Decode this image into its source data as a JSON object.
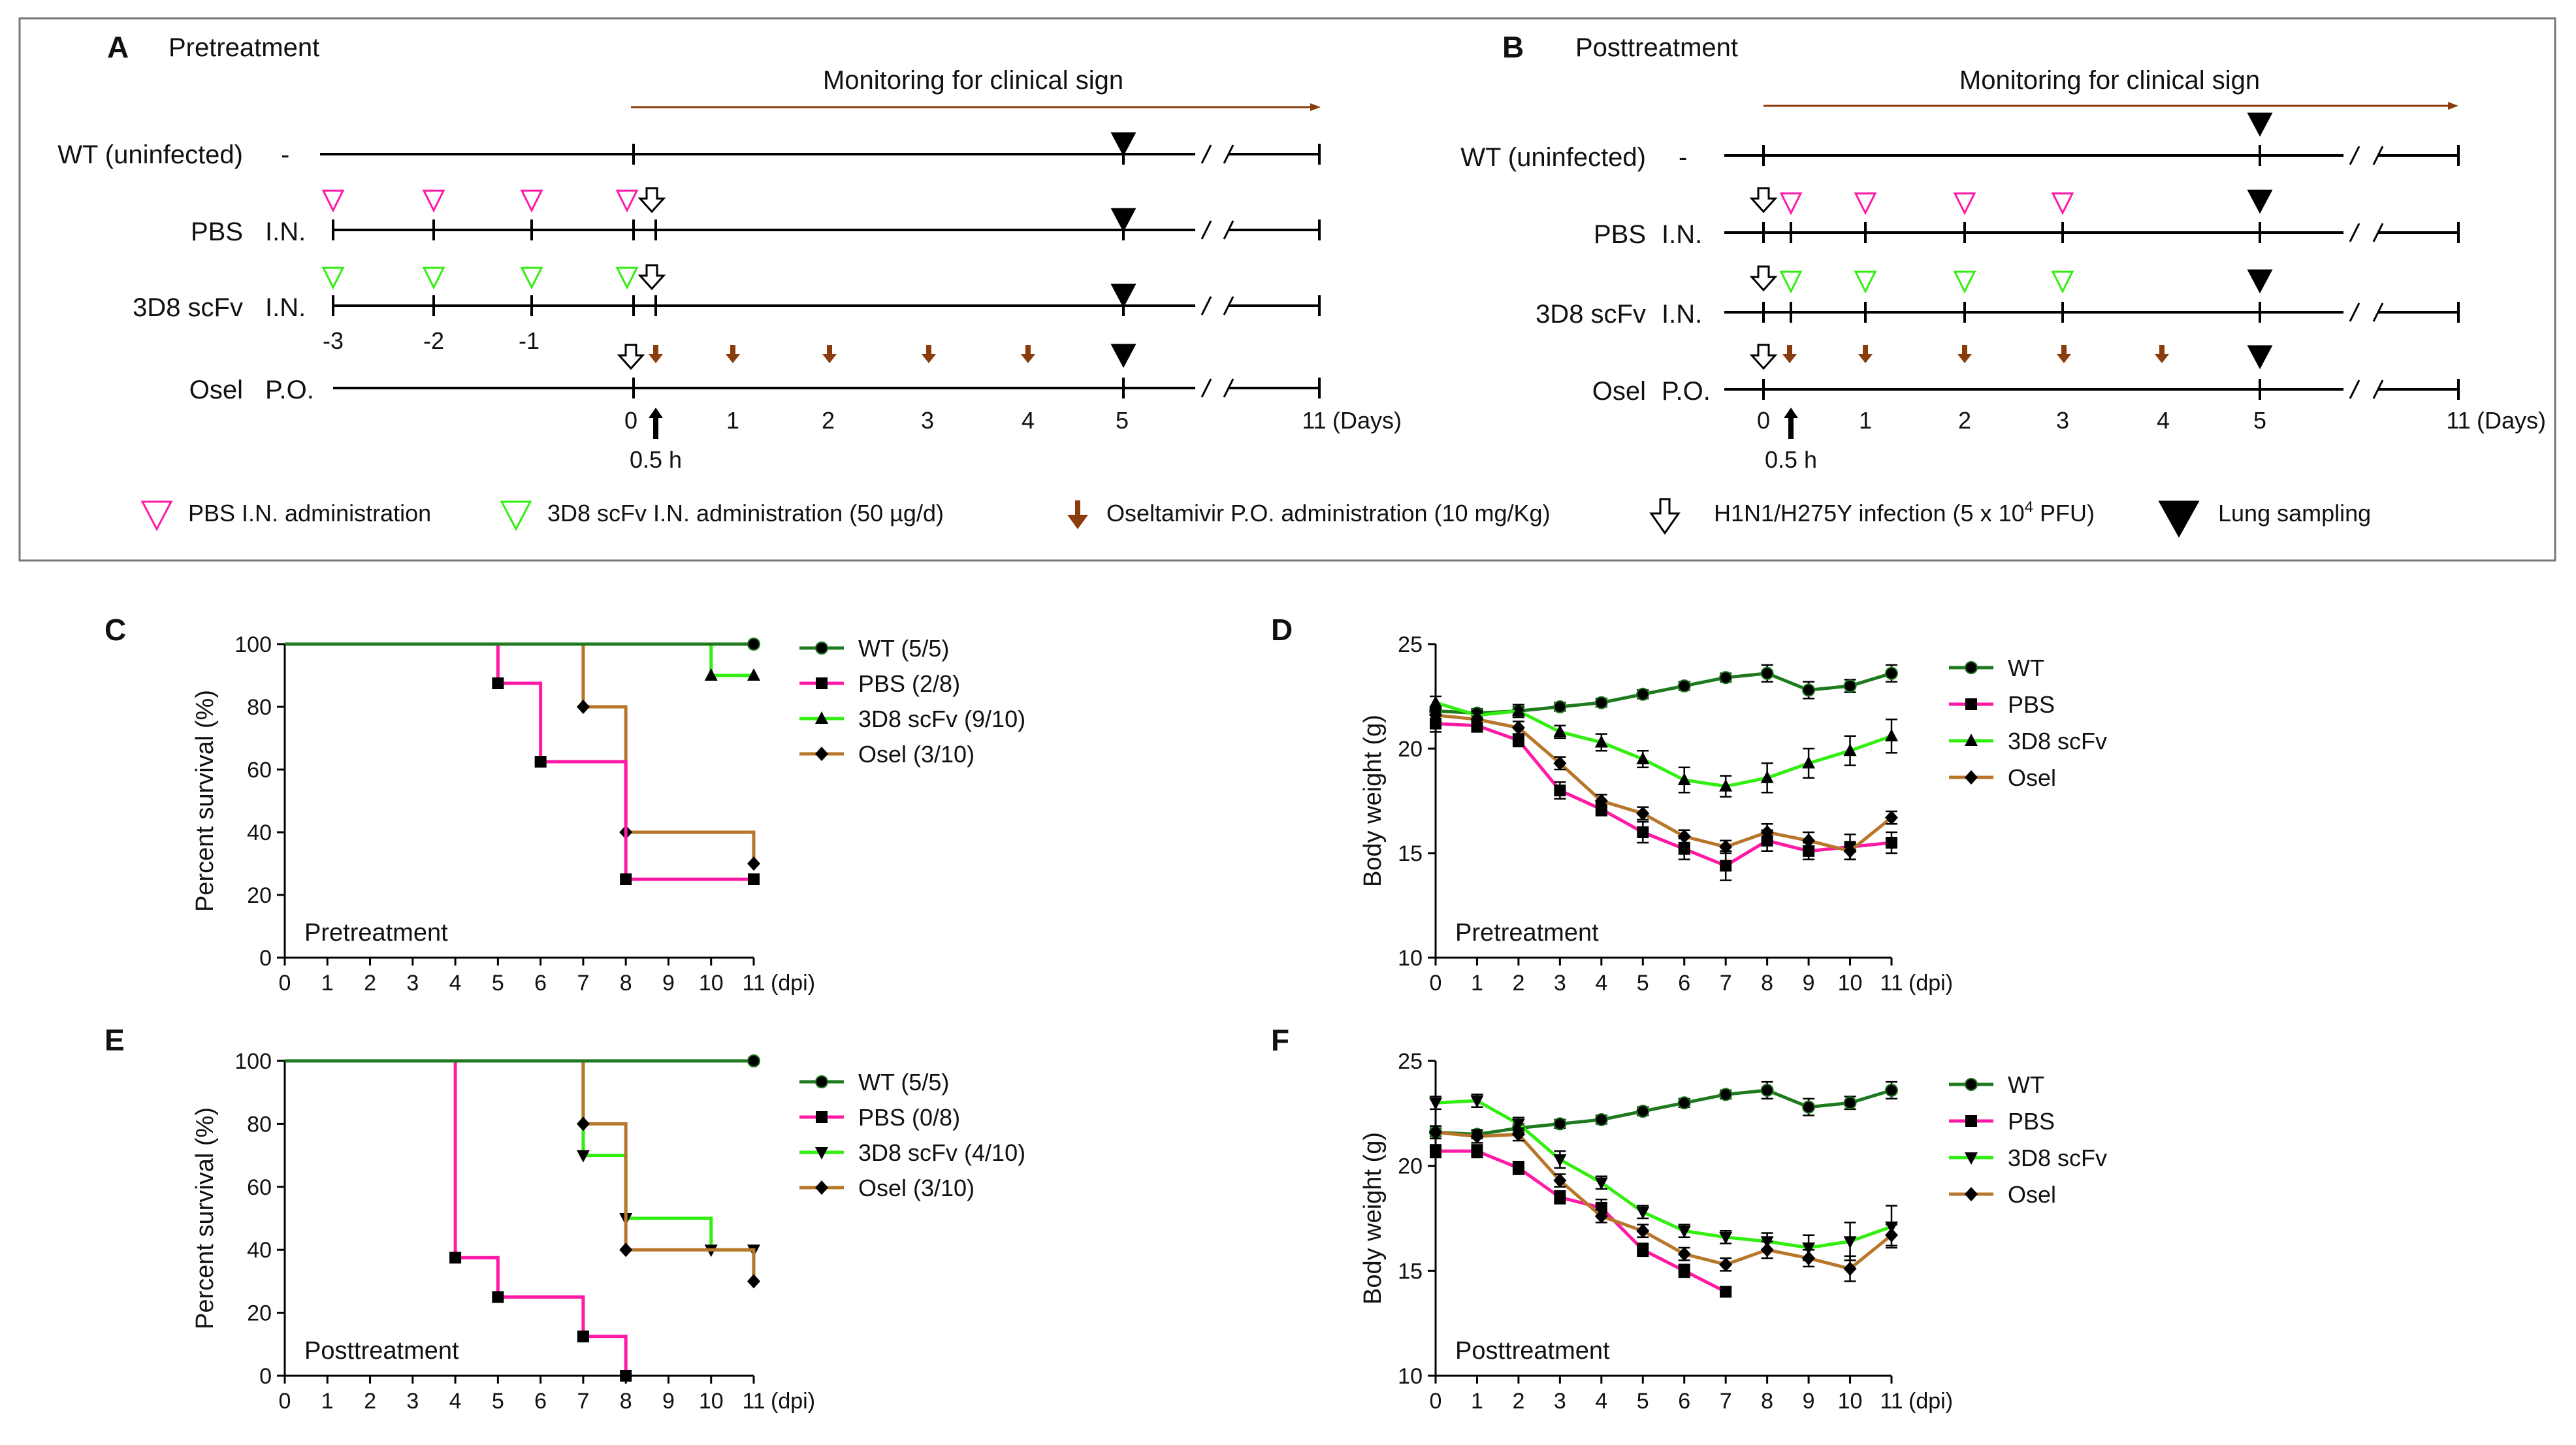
{
  "colors": {
    "wt": "#1f7a1f",
    "pbs": "#ff1aa5",
    "scfv": "#33ee11",
    "osel": "#b8762a",
    "arrow": "#8b3c0c",
    "black": "#000000"
  },
  "schematic": {
    "panels": [
      {
        "letter": "A",
        "title": "Pretreatment",
        "monitoring": "Monitoring for clinical sign",
        "rows": [
          {
            "label": "WT (uninfected)",
            "route": "-"
          },
          {
            "label": "PBS",
            "route": "I.N."
          },
          {
            "label": "3D8 scFv",
            "route": "I.N."
          },
          {
            "label": "Osel",
            "route": "P.O."
          }
        ],
        "day_labels": [
          "-3",
          "-2",
          "-1",
          "0",
          "1",
          "2",
          "3",
          "4",
          "5",
          "11"
        ],
        "half_hour": "0.5 h",
        "days_unit": "(Days)"
      },
      {
        "letter": "B",
        "title": "Posttreatment",
        "monitoring": "Monitoring for clinical sign",
        "rows": [
          {
            "label": "WT (uninfected)",
            "route": "-"
          },
          {
            "label": "PBS",
            "route": "I.N."
          },
          {
            "label": "3D8 scFv",
            "route": "I.N."
          },
          {
            "label": "Osel",
            "route": "P.O."
          }
        ],
        "day_labels": [
          "0",
          "1",
          "2",
          "3",
          "4",
          "5",
          "11"
        ],
        "half_hour": "0.5 h",
        "days_unit": "(Days)"
      }
    ],
    "legend": [
      {
        "icon": "pink-triangle-icon",
        "label": "PBS I.N. administration"
      },
      {
        "icon": "green-triangle-icon",
        "label": "3D8 scFv I.N. administration (50 µg/d)"
      },
      {
        "icon": "brown-arrow-icon",
        "label": "Oseltamivir P.O. administration (10 mg/Kg)"
      },
      {
        "icon": "open-arrow-icon",
        "label": "H1N1/H275Y infection (5 x 10",
        "label_sup": "4",
        "label_tail": " PFU)"
      },
      {
        "icon": "black-triangle-icon",
        "label": "Lung sampling"
      }
    ]
  },
  "chart_data": [
    {
      "id": "C",
      "type": "line",
      "step": true,
      "title": "Pretreatment",
      "xlabel": "(dpi)",
      "ylabel": "Percent survival  (%)",
      "xlim": [
        0,
        11
      ],
      "ylim": [
        0,
        100
      ],
      "xticks": [
        0,
        1,
        2,
        3,
        4,
        5,
        6,
        7,
        8,
        9,
        10,
        11
      ],
      "yticks": [
        0,
        20,
        40,
        60,
        80,
        100
      ],
      "series": [
        {
          "name": "WT",
          "count": "(5/5)",
          "key": "wt",
          "marker": "circle",
          "x": [
            0,
            11
          ],
          "y": [
            100,
            100
          ]
        },
        {
          "name": "PBS",
          "count": "(2/8)",
          "key": "pbs",
          "marker": "square",
          "x": [
            0,
            5,
            6,
            8,
            11
          ],
          "y": [
            100,
            87.5,
            62.5,
            25,
            25
          ]
        },
        {
          "name": "3D8 scFv",
          "count": "(9/10)",
          "key": "scfv",
          "marker": "triangle-up",
          "x": [
            0,
            10,
            11
          ],
          "y": [
            100,
            90,
            90
          ]
        },
        {
          "name": "Osel",
          "count": "(3/10)",
          "key": "osel",
          "marker": "diamond",
          "x": [
            0,
            7,
            8,
            11
          ],
          "y": [
            100,
            80,
            40,
            30
          ]
        }
      ]
    },
    {
      "id": "D",
      "type": "line",
      "title": "Pretreatment",
      "xlabel": "(dpi)",
      "ylabel": "Body weight  (g)",
      "xlim": [
        0,
        11
      ],
      "ylim": [
        10,
        25
      ],
      "xticks": [
        0,
        1,
        2,
        3,
        4,
        5,
        6,
        7,
        8,
        9,
        10,
        11
      ],
      "yticks": [
        10,
        15,
        20,
        25
      ],
      "series": [
        {
          "name": "WT",
          "key": "wt",
          "marker": "circle",
          "x": [
            0,
            1,
            2,
            3,
            4,
            5,
            6,
            7,
            8,
            9,
            10,
            11
          ],
          "y": [
            21.8,
            21.7,
            21.8,
            22.0,
            22.2,
            22.6,
            23.0,
            23.4,
            23.6,
            22.8,
            23.0,
            23.6
          ],
          "err": [
            0.2,
            0.2,
            0.2,
            0.2,
            0.2,
            0.2,
            0.2,
            0.2,
            0.4,
            0.4,
            0.3,
            0.4
          ]
        },
        {
          "name": "PBS",
          "key": "pbs",
          "marker": "square",
          "x": [
            0,
            1,
            2,
            3,
            4,
            5,
            6,
            7,
            8,
            9,
            10,
            11
          ],
          "y": [
            21.2,
            21.1,
            20.4,
            18.0,
            17.1,
            16.0,
            15.2,
            14.4,
            15.6,
            15.1,
            15.3,
            15.5
          ],
          "err": [
            0.4,
            0.3,
            0.3,
            0.4,
            0.3,
            0.5,
            0.5,
            0.7,
            0.5,
            0.4,
            0.6,
            0.5
          ]
        },
        {
          "name": "3D8 scFv",
          "key": "scfv",
          "marker": "triangle-up",
          "x": [
            0,
            1,
            2,
            3,
            4,
            5,
            6,
            7,
            8,
            9,
            10,
            11
          ],
          "y": [
            22.2,
            21.6,
            21.8,
            20.8,
            20.3,
            19.5,
            18.5,
            18.2,
            18.6,
            19.3,
            19.9,
            20.6
          ],
          "err": [
            0.3,
            0.2,
            0.3,
            0.3,
            0.4,
            0.4,
            0.6,
            0.5,
            0.7,
            0.7,
            0.7,
            0.8
          ]
        },
        {
          "name": "Osel",
          "key": "osel",
          "marker": "diamond",
          "x": [
            0,
            1,
            2,
            3,
            4,
            5,
            6,
            7,
            8,
            9,
            10,
            11
          ],
          "y": [
            21.6,
            21.4,
            21.0,
            19.3,
            17.5,
            16.9,
            15.8,
            15.3,
            16.0,
            15.6,
            15.1,
            16.7
          ],
          "err": [
            0.3,
            0.3,
            0.3,
            0.3,
            0.3,
            0.3,
            0.3,
            0.3,
            0.4,
            0.4,
            0.4,
            0.3
          ]
        }
      ]
    },
    {
      "id": "E",
      "type": "line",
      "step": true,
      "title": "Posttreatment",
      "xlabel": "(dpi)",
      "ylabel": "Percent survival  (%)",
      "xlim": [
        0,
        11
      ],
      "ylim": [
        0,
        100
      ],
      "xticks": [
        0,
        1,
        2,
        3,
        4,
        5,
        6,
        7,
        8,
        9,
        10,
        11
      ],
      "yticks": [
        0,
        20,
        40,
        60,
        80,
        100
      ],
      "series": [
        {
          "name": "WT",
          "count": "(5/5)",
          "key": "wt",
          "marker": "circle",
          "x": [
            0,
            11
          ],
          "y": [
            100,
            100
          ]
        },
        {
          "name": "PBS",
          "count": "(0/8)",
          "key": "pbs",
          "marker": "square",
          "x": [
            0,
            4,
            5,
            7,
            8
          ],
          "y": [
            100,
            37.5,
            25,
            12.5,
            0
          ]
        },
        {
          "name": "3D8 scFv",
          "count": "(4/10)",
          "key": "scfv",
          "marker": "triangle-down",
          "x": [
            0,
            7,
            8,
            10,
            11
          ],
          "y": [
            100,
            70,
            50,
            40,
            40
          ]
        },
        {
          "name": "Osel",
          "count": "(3/10)",
          "key": "osel",
          "marker": "diamond",
          "x": [
            0,
            7,
            8,
            11
          ],
          "y": [
            100,
            80,
            40,
            30
          ]
        }
      ]
    },
    {
      "id": "F",
      "type": "line",
      "title": "Posttreatment",
      "xlabel": "(dpi)",
      "ylabel": "Body weight  (g)",
      "xlim": [
        0,
        11
      ],
      "ylim": [
        10,
        25
      ],
      "xticks": [
        0,
        1,
        2,
        3,
        4,
        5,
        6,
        7,
        8,
        9,
        10,
        11
      ],
      "yticks": [
        10,
        15,
        20,
        25
      ],
      "series": [
        {
          "name": "WT",
          "key": "wt",
          "marker": "circle",
          "x": [
            0,
            1,
            2,
            3,
            4,
            5,
            6,
            7,
            8,
            9,
            10,
            11
          ],
          "y": [
            21.6,
            21.5,
            21.8,
            22.0,
            22.2,
            22.6,
            23.0,
            23.4,
            23.6,
            22.8,
            23.0,
            23.6
          ],
          "err": [
            0.2,
            0.2,
            0.2,
            0.2,
            0.2,
            0.2,
            0.2,
            0.2,
            0.4,
            0.4,
            0.3,
            0.4
          ]
        },
        {
          "name": "PBS",
          "key": "pbs",
          "marker": "square",
          "x": [
            0,
            1,
            2,
            3,
            4,
            5,
            6,
            7
          ],
          "y": [
            20.7,
            20.7,
            19.9,
            18.5,
            18.0,
            16.0,
            15.0,
            14.0
          ],
          "err": [
            0.3,
            0.3,
            0.3,
            0.3,
            0.4,
            0.3,
            0.3,
            0.2
          ]
        },
        {
          "name": "3D8 scFv",
          "key": "scfv",
          "marker": "triangle-down",
          "x": [
            0,
            1,
            2,
            3,
            4,
            5,
            6,
            7,
            8,
            9,
            10,
            11
          ],
          "y": [
            23.0,
            23.1,
            22.0,
            20.3,
            19.2,
            17.8,
            16.9,
            16.6,
            16.4,
            16.1,
            16.4,
            17.1
          ],
          "err": [
            0.3,
            0.3,
            0.3,
            0.4,
            0.3,
            0.3,
            0.3,
            0.3,
            0.4,
            0.6,
            0.9,
            1.0
          ]
        },
        {
          "name": "Osel",
          "key": "osel",
          "marker": "diamond",
          "x": [
            0,
            1,
            2,
            3,
            4,
            5,
            6,
            7,
            8,
            9,
            10,
            11
          ],
          "y": [
            21.6,
            21.4,
            21.5,
            19.3,
            17.6,
            16.9,
            15.8,
            15.3,
            16.0,
            15.6,
            15.1,
            16.7
          ],
          "err": [
            0.3,
            0.3,
            0.3,
            0.3,
            0.3,
            0.3,
            0.3,
            0.3,
            0.4,
            0.4,
            0.6,
            0.5
          ]
        }
      ]
    }
  ]
}
